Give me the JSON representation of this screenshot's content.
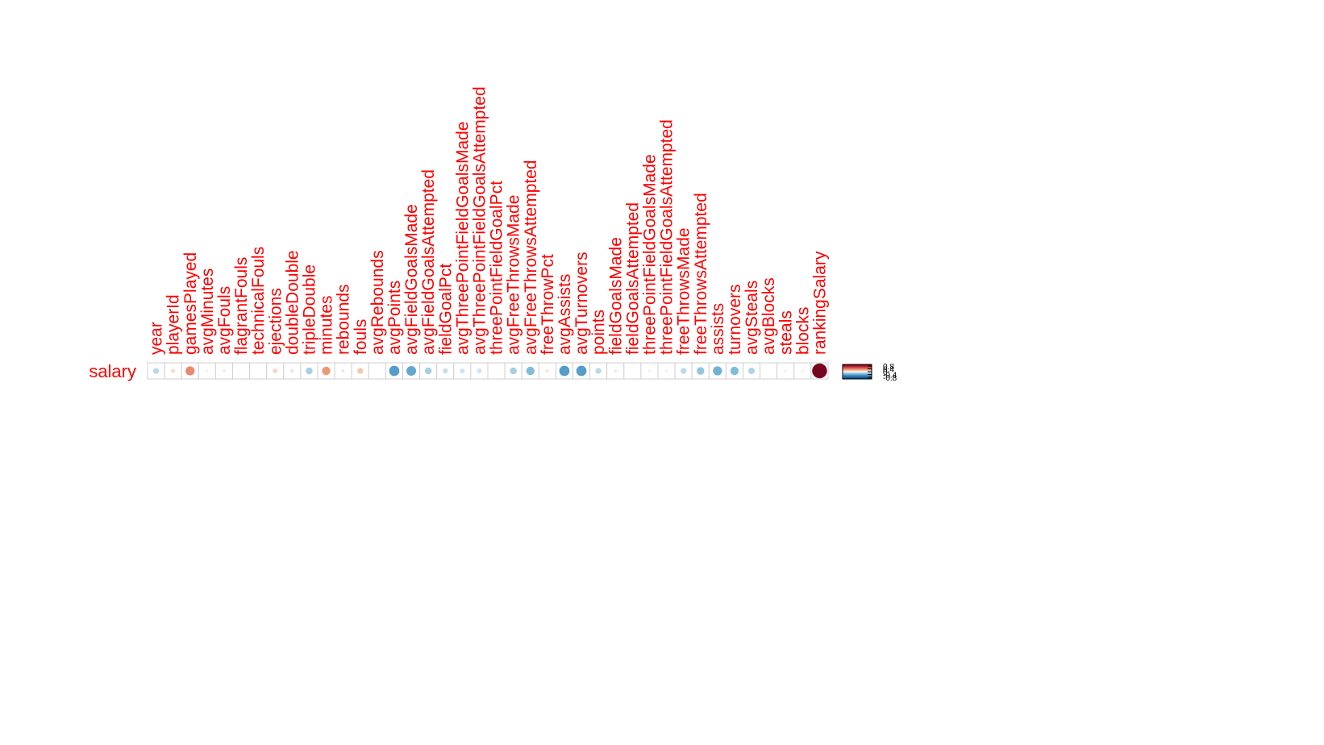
{
  "colors": {
    "label": "#ff0000",
    "grid": "#d0d0d0",
    "legend_tick": "#000000",
    "scale_negative": "#053061",
    "scale_mid": "#f7f7f7",
    "scale_positive": "#67001f"
  },
  "chart_data": {
    "type": "heatmap",
    "subtype": "correlation-circles",
    "row_labels": [
      "salary"
    ],
    "column_labels": [
      "year",
      "playerId",
      "gamesPlayed",
      "avgMinutes",
      "avgFouls",
      "flagrantFouls",
      "technicalFouls",
      "ejections",
      "doubleDouble",
      "tripleDouble",
      "minutes",
      "rebounds",
      "fouls",
      "avgRebounds",
      "avgPoints",
      "avgFieldGoalsMade",
      "avgFieldGoalsAttempted",
      "fieldGoalPct",
      "avgThreePointFieldGoalsMade",
      "avgThreePointFieldGoalsAttempted",
      "threePointFieldGoalPct",
      "avgFreeThrowsMade",
      "avgFreeThrowsAttempted",
      "freeThrowPct",
      "avgAssists",
      "avgTurnovers",
      "points",
      "fieldGoalsMade",
      "fieldGoalsAttempted",
      "threePointFieldGoalsMade",
      "threePointFieldGoalsAttempted",
      "freeThrowsMade",
      "freeThrowsAttempted",
      "assists",
      "turnovers",
      "avgSteals",
      "avgBlocks",
      "steals",
      "blocks",
      "rankingSalary"
    ],
    "values": [
      [
        -0.15,
        0.08,
        0.35,
        -0.03,
        -0.04,
        0.0,
        0.0,
        0.1,
        -0.06,
        -0.2,
        0.3,
        0.05,
        0.15,
        0.0,
        -0.45,
        -0.4,
        -0.2,
        -0.12,
        -0.1,
        -0.1,
        0.0,
        -0.2,
        -0.3,
        0.05,
        -0.45,
        -0.45,
        -0.15,
        -0.05,
        0.0,
        -0.03,
        -0.03,
        -0.15,
        -0.25,
        -0.35,
        -0.3,
        -0.18,
        0.0,
        -0.03,
        0.03,
        0.95
      ]
    ],
    "legend": {
      "type": "colorbar",
      "placement": "right",
      "ticks": [
        "0.8",
        "0.4",
        "0",
        "-0.4",
        "-0.8"
      ]
    },
    "value_range": [
      -1,
      1
    ],
    "grid": true
  }
}
